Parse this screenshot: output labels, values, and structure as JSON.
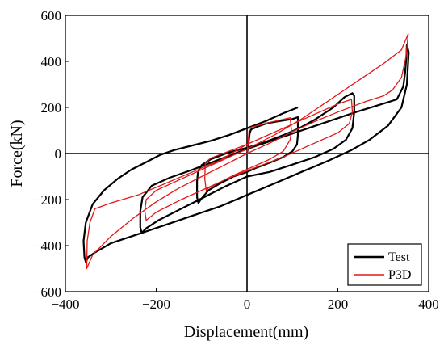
{
  "chart_data": {
    "type": "line",
    "xlabel": "Displacement(mm)",
    "ylabel": "Force(kN)",
    "xlim": [
      -400,
      400
    ],
    "ylim": [
      -600,
      600
    ],
    "x_ticks": [
      -400,
      -200,
      0,
      200,
      400
    ],
    "y_ticks": [
      -600,
      -400,
      -200,
      0,
      200,
      400,
      600
    ],
    "grid": false,
    "legend_position": "bottom-right",
    "zero_lines": true,
    "series": [
      {
        "name": "Test",
        "color": "#000000",
        "points": [
          [
            0,
            0
          ],
          [
            3,
            40
          ],
          [
            6,
            90
          ],
          [
            9,
            105
          ],
          [
            25,
            118
          ],
          [
            45,
            132
          ],
          [
            75,
            142
          ],
          [
            100,
            150
          ],
          [
            112,
            158
          ],
          [
            112,
            80
          ],
          [
            110,
            40
          ],
          [
            100,
            10
          ],
          [
            80,
            -15
          ],
          [
            50,
            -40
          ],
          [
            20,
            -62
          ],
          [
            0,
            -80
          ],
          [
            -30,
            -100
          ],
          [
            -60,
            -130
          ],
          [
            -85,
            -160
          ],
          [
            -102,
            -200
          ],
          [
            -107,
            -215
          ],
          [
            -110,
            -190
          ],
          [
            -110,
            -120
          ],
          [
            -108,
            -80
          ],
          [
            -100,
            -50
          ],
          [
            -80,
            -25
          ],
          [
            -40,
            5
          ],
          [
            0,
            25
          ],
          [
            40,
            50
          ],
          [
            80,
            80
          ],
          [
            115,
            110
          ],
          [
            150,
            148
          ],
          [
            190,
            200
          ],
          [
            215,
            245
          ],
          [
            232,
            262
          ],
          [
            236,
            250
          ],
          [
            236,
            180
          ],
          [
            232,
            110
          ],
          [
            218,
            60
          ],
          [
            190,
            20
          ],
          [
            150,
            -15
          ],
          [
            100,
            -48
          ],
          [
            50,
            -80
          ],
          [
            0,
            -100
          ],
          [
            -50,
            -145
          ],
          [
            -100,
            -195
          ],
          [
            -150,
            -245
          ],
          [
            -195,
            -290
          ],
          [
            -222,
            -325
          ],
          [
            -232,
            -345
          ],
          [
            -235,
            -320
          ],
          [
            -235,
            -250
          ],
          [
            -230,
            -190
          ],
          [
            -210,
            -140
          ],
          [
            -170,
            -105
          ],
          [
            -120,
            -70
          ],
          [
            -60,
            -25
          ],
          [
            0,
            20
          ],
          [
            60,
            60
          ],
          [
            120,
            100
          ],
          [
            180,
            140
          ],
          [
            240,
            180
          ],
          [
            290,
            210
          ],
          [
            330,
            235
          ],
          [
            344,
            290
          ],
          [
            348,
            350
          ],
          [
            351,
            420
          ],
          [
            352,
            472
          ],
          [
            356,
            440
          ],
          [
            352,
            300
          ],
          [
            340,
            200
          ],
          [
            310,
            120
          ],
          [
            270,
            60
          ],
          [
            230,
            15
          ],
          [
            180,
            -30
          ],
          [
            120,
            -80
          ],
          [
            60,
            -130
          ],
          [
            0,
            -180
          ],
          [
            -60,
            -230
          ],
          [
            -120,
            -270
          ],
          [
            -180,
            -310
          ],
          [
            -240,
            -350
          ],
          [
            -300,
            -390
          ],
          [
            -335,
            -430
          ],
          [
            -350,
            -450
          ],
          [
            -355,
            -472
          ],
          [
            -358,
            -450
          ],
          [
            -360,
            -380
          ],
          [
            -355,
            -300
          ],
          [
            -340,
            -220
          ],
          [
            -315,
            -160
          ],
          [
            -285,
            -110
          ],
          [
            -255,
            -70
          ],
          [
            -220,
            -35
          ],
          [
            -190,
            -5
          ],
          [
            -160,
            15
          ],
          [
            -120,
            35
          ],
          [
            -80,
            55
          ],
          [
            -40,
            80
          ],
          [
            0,
            110
          ],
          [
            40,
            140
          ],
          [
            80,
            175
          ],
          [
            112,
            200
          ]
        ]
      },
      {
        "name": "P3D",
        "color": "#e01818",
        "points": [
          [
            0,
            0
          ],
          [
            5,
            110
          ],
          [
            10,
            115
          ],
          [
            50,
            135
          ],
          [
            95,
            155
          ],
          [
            98,
            100
          ],
          [
            95,
            60
          ],
          [
            80,
            10
          ],
          [
            50,
            -25
          ],
          [
            10,
            -60
          ],
          [
            -30,
            -95
          ],
          [
            -60,
            -125
          ],
          [
            -85,
            -150
          ],
          [
            -90,
            -160
          ],
          [
            -93,
            -110
          ],
          [
            -92,
            -40
          ],
          [
            -80,
            -20
          ],
          [
            -40,
            10
          ],
          [
            0,
            40
          ],
          [
            40,
            75
          ],
          [
            80,
            110
          ],
          [
            120,
            145
          ],
          [
            160,
            180
          ],
          [
            200,
            215
          ],
          [
            230,
            235
          ],
          [
            232,
            180
          ],
          [
            225,
            130
          ],
          [
            200,
            90
          ],
          [
            160,
            55
          ],
          [
            120,
            20
          ],
          [
            80,
            -15
          ],
          [
            40,
            -45
          ],
          [
            0,
            -75
          ],
          [
            -50,
            -115
          ],
          [
            -100,
            -160
          ],
          [
            -150,
            -205
          ],
          [
            -200,
            -255
          ],
          [
            -222,
            -290
          ],
          [
            -225,
            -250
          ],
          [
            -222,
            -200
          ],
          [
            -200,
            -160
          ],
          [
            -150,
            -115
          ],
          [
            -100,
            -70
          ],
          [
            -50,
            -25
          ],
          [
            0,
            20
          ],
          [
            60,
            80
          ],
          [
            120,
            150
          ],
          [
            180,
            230
          ],
          [
            240,
            310
          ],
          [
            300,
            390
          ],
          [
            340,
            450
          ],
          [
            355,
            520
          ],
          [
            350,
            420
          ],
          [
            340,
            330
          ],
          [
            320,
            275
          ],
          [
            300,
            250
          ],
          [
            260,
            225
          ],
          [
            200,
            180
          ],
          [
            150,
            140
          ],
          [
            100,
            95
          ],
          [
            50,
            45
          ],
          [
            0,
            0
          ],
          [
            -50,
            -50
          ],
          [
            -100,
            -100
          ],
          [
            -150,
            -150
          ],
          [
            -200,
            -210
          ],
          [
            -250,
            -280
          ],
          [
            -300,
            -360
          ],
          [
            -340,
            -440
          ],
          [
            -353,
            -500
          ],
          [
            -352,
            -380
          ],
          [
            -346,
            -300
          ],
          [
            -335,
            -240
          ],
          [
            -300,
            -215
          ],
          [
            -240,
            -180
          ],
          [
            -180,
            -130
          ],
          [
            -120,
            -80
          ],
          [
            -60,
            -30
          ],
          [
            0,
            40
          ]
        ]
      }
    ]
  }
}
